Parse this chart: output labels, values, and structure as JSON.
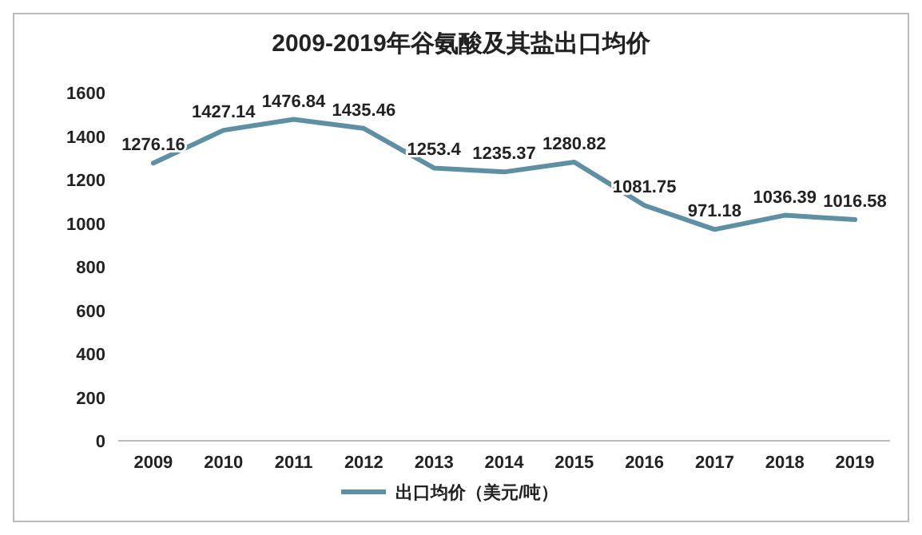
{
  "chart_data": {
    "type": "line",
    "title": "2009-2019年谷氨酸及其盐出口均价",
    "categories": [
      "2009",
      "2010",
      "2011",
      "2012",
      "2013",
      "2014",
      "2015",
      "2016",
      "2017",
      "2018",
      "2019"
    ],
    "series": [
      {
        "name": "出口均价（美元/吨）",
        "color": "#5f8fa3",
        "values": [
          1276.16,
          1427.14,
          1476.84,
          1435.46,
          1253.4,
          1235.37,
          1280.82,
          1081.75,
          971.18,
          1036.39,
          1016.58
        ]
      }
    ],
    "ylim": [
      0,
      1600
    ],
    "yticks": [
      0,
      200,
      400,
      600,
      800,
      1000,
      1200,
      1400,
      1600
    ],
    "grid": false,
    "legend": "bottom",
    "data_labels": true,
    "marker": "none",
    "line_style": "solid"
  }
}
